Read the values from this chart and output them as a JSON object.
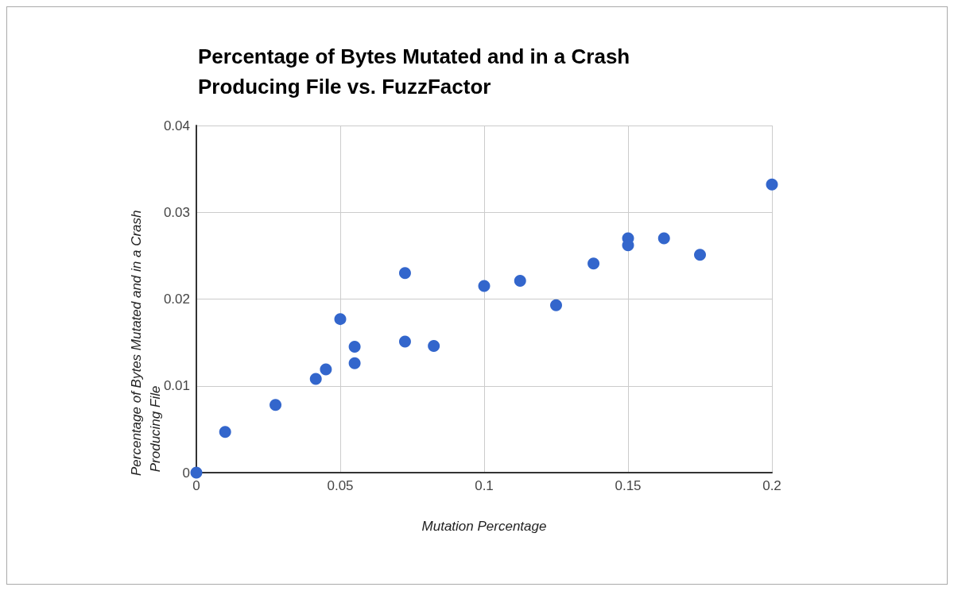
{
  "chart_data": {
    "type": "scatter",
    "title": "Percentage of Bytes Mutated and in a Crash Producing File vs. FuzzFactor",
    "xlabel": "Mutation Percentage",
    "ylabel": "Percentage of Bytes Mutated and in a Crash Producing File",
    "x": [
      0,
      0.01,
      0.0275,
      0.0415,
      0.045,
      0.05,
      0.055,
      0.055,
      0.0725,
      0.0725,
      0.0825,
      0.1,
      0.1125,
      0.125,
      0.138,
      0.15,
      0.15,
      0.1625,
      0.175,
      0.2
    ],
    "series": [
      {
        "color": "#3366cc",
        "values": [
          0,
          0.0047,
          0.0078,
          0.0108,
          0.0119,
          0.0177,
          0.0145,
          0.0126,
          0.023,
          0.0151,
          0.0146,
          0.0215,
          0.0221,
          0.0193,
          0.0241,
          0.027,
          0.0262,
          0.027,
          0.0251,
          0.0332
        ]
      }
    ],
    "xlim": [
      0,
      0.2
    ],
    "xticks": [
      0,
      0.05,
      0.1,
      0.15,
      0.2
    ],
    "ylim": [
      0,
      0.04
    ],
    "yticks": [
      0,
      0.01,
      0.02,
      0.03,
      0.04
    ],
    "grid": true,
    "marker": "circle"
  }
}
